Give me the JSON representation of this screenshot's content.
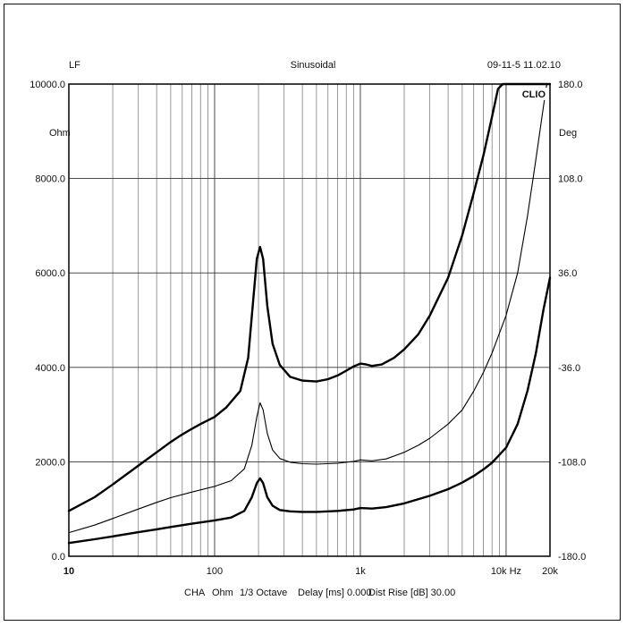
{
  "header": {
    "left": "LF",
    "center": "Sinusoidal",
    "right": "09-11-5 11.02.10"
  },
  "badge": "CLIO",
  "units": {
    "left": "Ohm",
    "right": "Deg"
  },
  "footer": {
    "ch": "CHA",
    "unit": "Ohm",
    "smoothing": "1/3 Octave",
    "delay": "Delay [ms] 0.000",
    "dist": "Dist Rise [dB] 30.00"
  },
  "chart_data": {
    "type": "line",
    "title": "Sinusoidal",
    "xscale": "log",
    "xlim": [
      10,
      20000
    ],
    "ylim": [
      0,
      10000
    ],
    "y2lim": [
      -180,
      180
    ],
    "ylabel": "Ohm",
    "y2label": "Deg",
    "xticks": [
      {
        "v": 10,
        "label": "10"
      },
      {
        "v": 100,
        "label": "100"
      },
      {
        "v": 1000,
        "label": "1k"
      },
      {
        "v": 10000,
        "label": "10k Hz"
      },
      {
        "v": 20000,
        "label": "20k"
      }
    ],
    "yticks": [
      {
        "v": 0,
        "label": "0.0"
      },
      {
        "v": 2000,
        "label": "2000.0"
      },
      {
        "v": 4000,
        "label": "4000.0"
      },
      {
        "v": 6000,
        "label": "6000.0"
      },
      {
        "v": 8000,
        "label": "8000.0"
      },
      {
        "v": 10000,
        "label": "10000.0"
      }
    ],
    "y2ticks": [
      {
        "v": -180,
        "label": "-180.0"
      },
      {
        "v": -108,
        "label": "-108.0"
      },
      {
        "v": -36,
        "label": "-36.0"
      },
      {
        "v": 36,
        "label": "36.0"
      },
      {
        "v": 108,
        "label": "108.0"
      },
      {
        "v": 180,
        "label": "180.0"
      }
    ],
    "grid": true,
    "series": [
      {
        "style": "thick",
        "points": [
          [
            10,
            960
          ],
          [
            15,
            1250
          ],
          [
            20,
            1520
          ],
          [
            30,
            1920
          ],
          [
            40,
            2200
          ],
          [
            50,
            2420
          ],
          [
            60,
            2580
          ],
          [
            70,
            2700
          ],
          [
            80,
            2800
          ],
          [
            100,
            2950
          ],
          [
            120,
            3150
          ],
          [
            150,
            3500
          ],
          [
            170,
            4200
          ],
          [
            185,
            5500
          ],
          [
            195,
            6300
          ],
          [
            205,
            6550
          ],
          [
            215,
            6300
          ],
          [
            230,
            5300
          ],
          [
            250,
            4500
          ],
          [
            280,
            4050
          ],
          [
            330,
            3800
          ],
          [
            400,
            3720
          ],
          [
            500,
            3700
          ],
          [
            600,
            3750
          ],
          [
            700,
            3830
          ],
          [
            800,
            3930
          ],
          [
            900,
            4020
          ],
          [
            1000,
            4080
          ],
          [
            1100,
            4060
          ],
          [
            1200,
            4030
          ],
          [
            1400,
            4060
          ],
          [
            1700,
            4200
          ],
          [
            2000,
            4380
          ],
          [
            2500,
            4700
          ],
          [
            3000,
            5100
          ],
          [
            4000,
            5900
          ],
          [
            5000,
            6800
          ],
          [
            6000,
            7700
          ],
          [
            7000,
            8500
          ],
          [
            8000,
            9300
          ],
          [
            8800,
            9900
          ],
          [
            9500,
            10000
          ],
          [
            20000,
            10000
          ]
        ]
      },
      {
        "style": "thin",
        "points": [
          [
            10,
            500
          ],
          [
            15,
            660
          ],
          [
            20,
            800
          ],
          [
            30,
            1000
          ],
          [
            40,
            1140
          ],
          [
            50,
            1240
          ],
          [
            70,
            1360
          ],
          [
            100,
            1480
          ],
          [
            130,
            1600
          ],
          [
            160,
            1850
          ],
          [
            180,
            2350
          ],
          [
            195,
            2950
          ],
          [
            205,
            3250
          ],
          [
            215,
            3100
          ],
          [
            230,
            2600
          ],
          [
            250,
            2250
          ],
          [
            280,
            2070
          ],
          [
            330,
            1990
          ],
          [
            400,
            1960
          ],
          [
            500,
            1950
          ],
          [
            700,
            1970
          ],
          [
            900,
            2010
          ],
          [
            1000,
            2040
          ],
          [
            1200,
            2020
          ],
          [
            1500,
            2060
          ],
          [
            2000,
            2200
          ],
          [
            2500,
            2350
          ],
          [
            3000,
            2500
          ],
          [
            4000,
            2800
          ],
          [
            5000,
            3100
          ],
          [
            6000,
            3500
          ],
          [
            7000,
            3900
          ],
          [
            8000,
            4300
          ],
          [
            10000,
            5100
          ],
          [
            12000,
            6000
          ],
          [
            14000,
            7200
          ],
          [
            16000,
            8400
          ],
          [
            18000,
            9500
          ],
          [
            19000,
            10000
          ]
        ]
      },
      {
        "style": "thick",
        "points": [
          [
            10,
            280
          ],
          [
            15,
            360
          ],
          [
            20,
            420
          ],
          [
            30,
            510
          ],
          [
            40,
            570
          ],
          [
            50,
            620
          ],
          [
            70,
            690
          ],
          [
            100,
            760
          ],
          [
            130,
            820
          ],
          [
            160,
            960
          ],
          [
            180,
            1250
          ],
          [
            195,
            1550
          ],
          [
            205,
            1650
          ],
          [
            215,
            1550
          ],
          [
            230,
            1250
          ],
          [
            250,
            1070
          ],
          [
            280,
            980
          ],
          [
            330,
            950
          ],
          [
            400,
            940
          ],
          [
            500,
            940
          ],
          [
            700,
            960
          ],
          [
            900,
            990
          ],
          [
            1000,
            1020
          ],
          [
            1200,
            1010
          ],
          [
            1500,
            1040
          ],
          [
            2000,
            1120
          ],
          [
            3000,
            1280
          ],
          [
            4000,
            1420
          ],
          [
            5000,
            1560
          ],
          [
            6000,
            1700
          ],
          [
            7000,
            1840
          ],
          [
            8000,
            1980
          ],
          [
            10000,
            2300
          ],
          [
            12000,
            2800
          ],
          [
            14000,
            3500
          ],
          [
            16000,
            4300
          ],
          [
            18000,
            5200
          ],
          [
            20000,
            5900
          ]
        ]
      }
    ]
  }
}
